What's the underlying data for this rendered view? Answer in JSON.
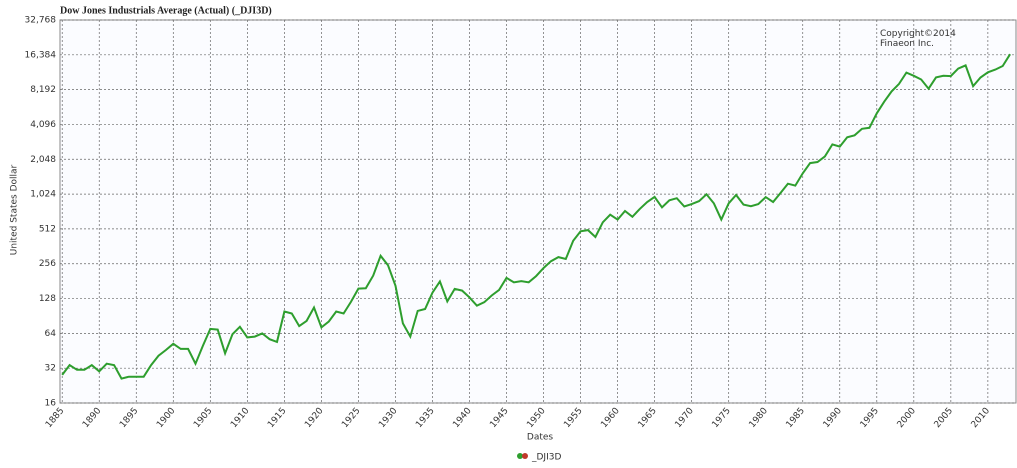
{
  "chart_data": {
    "type": "line",
    "title": "Dow Jones Industrials Average (Actual) (_DJI3D)",
    "annotation": "Copyright©2014\nFinaeon Inc.",
    "xlabel": "Dates",
    "ylabel": "United States Dollar",
    "log_scale": true,
    "grid": true,
    "x": [
      1885,
      1886,
      1887,
      1888,
      1889,
      1890,
      1891,
      1892,
      1893,
      1894,
      1895,
      1896,
      1897,
      1898,
      1899,
      1900,
      1901,
      1902,
      1903,
      1904,
      1905,
      1906,
      1907,
      1908,
      1909,
      1910,
      1911,
      1912,
      1913,
      1914,
      1915,
      1916,
      1917,
      1918,
      1919,
      1920,
      1921,
      1922,
      1923,
      1924,
      1925,
      1926,
      1927,
      1928,
      1929,
      1930,
      1931,
      1932,
      1933,
      1934,
      1935,
      1936,
      1937,
      1938,
      1939,
      1940,
      1941,
      1942,
      1943,
      1944,
      1945,
      1946,
      1947,
      1948,
      1949,
      1950,
      1951,
      1952,
      1953,
      1954,
      1955,
      1956,
      1957,
      1958,
      1959,
      1960,
      1961,
      1962,
      1963,
      1964,
      1965,
      1966,
      1967,
      1968,
      1969,
      1970,
      1971,
      1972,
      1973,
      1974,
      1975,
      1976,
      1977,
      1978,
      1979,
      1980,
      1981,
      1982,
      1983,
      1984,
      1985,
      1986,
      1987,
      1988,
      1989,
      1990,
      1991,
      1992,
      1993,
      1994,
      1995,
      1996,
      1997,
      1998,
      1999,
      2000,
      2001,
      2002,
      2003,
      2004,
      2005,
      2006,
      2007,
      2008,
      2009,
      2010,
      2011,
      2012,
      2013
    ],
    "series": [
      {
        "name": "_DJI3D",
        "color": "#2e9e2e",
        "values": [
          28,
          34,
          31,
          31,
          34,
          30,
          35,
          34,
          26,
          27,
          27,
          27,
          34,
          41,
          46,
          52,
          47,
          47,
          35,
          50,
          70,
          69,
          43,
          63,
          73,
          59,
          60,
          64,
          57,
          54,
          99,
          95,
          74,
          82,
          107,
          72,
          81,
          99,
          95,
          120,
          156,
          157,
          202,
          300,
          248,
          165,
          78,
          60,
          100,
          104,
          144,
          180,
          121,
          155,
          150,
          131,
          111,
          119,
          136,
          152,
          193,
          177,
          181,
          177,
          200,
          235,
          269,
          292,
          281,
          404,
          488,
          500,
          436,
          584,
          679,
          616,
          731,
          652,
          763,
          874,
          969,
          786,
          905,
          944,
          800,
          839,
          890,
          1020,
          851,
          616,
          852,
          1005,
          831,
          805,
          839,
          964,
          875,
          1047,
          1259,
          1212,
          1547,
          1896,
          1939,
          2169,
          2753,
          2634,
          3169,
          3301,
          3754,
          3834,
          5117,
          6448,
          7908,
          9181,
          11497,
          10787,
          10021,
          8342,
          10454,
          10783,
          10718,
          12463,
          13265,
          8776,
          10428,
          11578,
          12218,
          13104,
          16577
        ]
      }
    ],
    "xlim": [
      1884.7,
      2013.8
    ],
    "xticks": [
      1885,
      1890,
      1895,
      1900,
      1905,
      1910,
      1915,
      1920,
      1925,
      1930,
      1935,
      1940,
      1945,
      1950,
      1955,
      1960,
      1965,
      1970,
      1975,
      1980,
      1985,
      1990,
      1995,
      2000,
      2005,
      2010
    ],
    "ylim": [
      16,
      32768
    ],
    "yticks": [
      16,
      32,
      64,
      128,
      256,
      512,
      {
        "value": 1024,
        "label": "1,024"
      },
      {
        "value": 2048,
        "label": "2,048"
      },
      {
        "value": 4096,
        "label": "4,096"
      },
      {
        "value": 8192,
        "label": "8,192"
      },
      {
        "value": 16384,
        "label": "16,384"
      },
      {
        "value": 32768,
        "label": "32,768"
      }
    ]
  }
}
